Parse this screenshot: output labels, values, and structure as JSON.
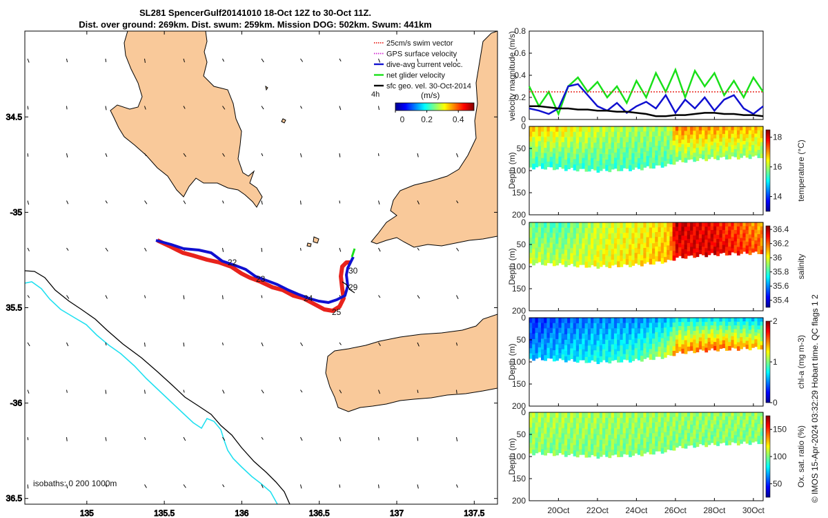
{
  "title": {
    "line1": "SL281 SpencerGulf20141010 18-Oct 12Z to 30-Oct 11Z.",
    "line2": "Dist. over ground: 269km. Dist. swum: 259km. Mission DOG: 502km. Swum: 441km"
  },
  "colors": {
    "land": "#f9c99a",
    "track_red": "#e8231c",
    "track_blue": "#1010d0",
    "cyan": "#20e0f0",
    "green": "#19e019"
  },
  "map": {
    "lon_ticks": [
      "135",
      "135.5",
      "136",
      "136.5",
      "137",
      "137.5"
    ],
    "lon_values": [
      135,
      135.5,
      136,
      136.5,
      137,
      137.5
    ],
    "lon_range": [
      134.6,
      137.65
    ],
    "lat_ticks": [
      "34.5",
      "-35",
      "35.5",
      "-36",
      "36.5"
    ],
    "lat_values": [
      -34.5,
      -35,
      -35.5,
      -36,
      -36.5
    ],
    "lat_range": [
      -36.53,
      -34.05
    ],
    "isobaths_label": "isobaths: 0   200  1000m",
    "day_labels": [
      "22",
      "23",
      "24",
      "25",
      "29",
      "30"
    ],
    "legend": [
      {
        "label": "25cm/s swim vector",
        "color": "#e8231c",
        "style": "dotted"
      },
      {
        "label": "GPS surface velocity",
        "color": "#d020d0",
        "style": "dotted"
      },
      {
        "label": "dive-avg current veloc.",
        "color": "#1010d0",
        "style": "solid"
      },
      {
        "label": "net glider velocity",
        "color": "#19e019",
        "style": "solid"
      },
      {
        "label": "sfc geo. vel. 30-Oct-2014",
        "color": "#000000",
        "style": "solid"
      }
    ],
    "vector_note": "4h",
    "colorbar_unit": "(m/s)",
    "colorbar_ticks": [
      "0",
      "0.2",
      "0.4"
    ],
    "colorbar_values": [
      0,
      0.2,
      0.4
    ],
    "colorbar_range": [
      0,
      0.5
    ]
  },
  "chart_data": [
    {
      "type": "line",
      "title": "velocity magnitude",
      "ylabel": "velocity magnitude (m/s)",
      "ylim": [
        0,
        0.8
      ],
      "yticks": [
        "0",
        "0.2",
        "0.4",
        "0.6",
        "0.8"
      ],
      "ytick_values": [
        0,
        0.2,
        0.4,
        0.6,
        0.8
      ],
      "xlim": [
        18.5,
        30.5
      ],
      "x": [
        18.5,
        19,
        19.5,
        20,
        20.5,
        21,
        21.5,
        22,
        22.5,
        23,
        23.5,
        24,
        24.5,
        25,
        25.5,
        26,
        26.5,
        27,
        27.5,
        28,
        28.5,
        29,
        29.5,
        30,
        30.5
      ],
      "series": [
        {
          "name": "net glider velocity",
          "color": "#19e019",
          "values": [
            0.3,
            0.12,
            0.25,
            0.05,
            0.3,
            0.38,
            0.25,
            0.34,
            0.2,
            0.3,
            0.15,
            0.35,
            0.2,
            0.42,
            0.25,
            0.45,
            0.2,
            0.44,
            0.3,
            0.42,
            0.22,
            0.35,
            0.2,
            0.38,
            0.25
          ]
        },
        {
          "name": "dive-avg current veloc.",
          "color": "#1010d0",
          "values": [
            0.1,
            0.08,
            0.05,
            0.1,
            0.3,
            0.32,
            0.22,
            0.12,
            0.08,
            0.15,
            0.06,
            0.12,
            0.16,
            0.1,
            0.22,
            0.06,
            0.18,
            0.1,
            0.2,
            0.08,
            0.18,
            0.22,
            0.1,
            0.05,
            0.12
          ]
        },
        {
          "name": "sfc geo. vel.",
          "color": "#000000",
          "values": [
            0.12,
            0.12,
            0.11,
            0.1,
            0.1,
            0.09,
            0.09,
            0.08,
            0.08,
            0.07,
            0.07,
            0.06,
            0.05,
            0.03,
            0.03,
            0.04,
            0.04,
            0.05,
            0.06,
            0.06,
            0.05,
            0.05,
            0.04,
            0.04,
            0.03
          ]
        },
        {
          "name": "25cm/s swim vector",
          "color": "#e8231c",
          "values": [
            0.25,
            0.25,
            0.25,
            0.25,
            0.25,
            0.25,
            0.25,
            0.25,
            0.25,
            0.25,
            0.25,
            0.25,
            0.25,
            0.25,
            0.25,
            0.25,
            0.25,
            0.25,
            0.25,
            0.25,
            0.25,
            0.25,
            0.25,
            0.25,
            0.25
          ]
        }
      ]
    },
    {
      "type": "heatmap",
      "ylabel": "Depth (m)",
      "clabel": "temperature (°C)",
      "yticks": [
        "0",
        "50",
        "100",
        "150",
        "200"
      ],
      "ytick_values": [
        0,
        50,
        100,
        150,
        200
      ],
      "cticks": [
        "14",
        "16",
        "18"
      ],
      "ctick_values": [
        14,
        16,
        18
      ],
      "crange": [
        13,
        18.5
      ],
      "x_days": [
        18.5,
        20,
        22,
        24,
        25.7,
        26,
        28,
        30.5
      ],
      "bottom_depth_m": [
        92,
        95,
        100,
        96,
        87,
        80,
        72,
        68
      ],
      "surface_value": [
        16.8,
        16.6,
        16.2,
        16.0,
        16.0,
        17.2,
        17.0,
        16.8
      ],
      "bottom_value": [
        15.2,
        15.3,
        15.4,
        15.4,
        15.5,
        15.6,
        15.8,
        15.8
      ]
    },
    {
      "type": "heatmap",
      "ylabel": "Depth (m)",
      "clabel": "salinity",
      "yticks": [
        "0",
        "50",
        "100",
        "150",
        "200"
      ],
      "ytick_values": [
        0,
        50,
        100,
        150,
        200
      ],
      "cticks": [
        "35.4",
        "35.6",
        "35.8",
        "36",
        "36.2",
        "36.4"
      ],
      "ctick_values": [
        35.4,
        35.6,
        35.8,
        36,
        36.2,
        36.4
      ],
      "crange": [
        35.3,
        36.45
      ],
      "x_days": [
        18.5,
        20,
        22,
        24,
        25.7,
        26,
        28,
        30.5
      ],
      "bottom_depth_m": [
        92,
        95,
        100,
        96,
        87,
        80,
        72,
        68
      ],
      "surface_value": [
        35.85,
        35.8,
        35.95,
        36.0,
        36.05,
        36.38,
        36.3,
        36.1
      ],
      "bottom_value": [
        35.95,
        35.95,
        36.0,
        36.05,
        36.1,
        36.3,
        36.35,
        36.2
      ]
    },
    {
      "type": "heatmap",
      "ylabel": "Depth (m)",
      "clabel": "chl-a (mg m-3)",
      "yticks": [
        "0",
        "50",
        "100",
        "150",
        "200"
      ],
      "ytick_values": [
        0,
        50,
        100,
        150,
        200
      ],
      "cticks": [
        "0",
        "1",
        "2"
      ],
      "ctick_values": [
        0,
        1,
        2
      ],
      "crange": [
        0,
        2
      ],
      "x_days": [
        18.5,
        20,
        22,
        24,
        25.7,
        26,
        28,
        30.5
      ],
      "bottom_depth_m": [
        92,
        95,
        100,
        96,
        87,
        80,
        72,
        68
      ],
      "surface_value": [
        0.3,
        0.4,
        0.5,
        0.5,
        0.6,
        0.7,
        0.7,
        0.6
      ],
      "bottom_value": [
        0.6,
        0.7,
        0.8,
        0.9,
        1.2,
        1.5,
        1.6,
        1.4
      ]
    },
    {
      "type": "heatmap",
      "ylabel": "Depth (m)",
      "clabel": "Ox. sat. ratio (%)",
      "yticks": [
        "0",
        "50",
        "100",
        "150",
        "200"
      ],
      "ytick_values": [
        0,
        50,
        100,
        150,
        200
      ],
      "cticks": [
        "50",
        "100",
        "150"
      ],
      "ctick_values": [
        50,
        100,
        150
      ],
      "crange": [
        25,
        175
      ],
      "x_days": [
        18.5,
        20,
        22,
        24,
        25.7,
        26,
        28,
        30.5
      ],
      "bottom_depth_m": [
        92,
        95,
        100,
        96,
        87,
        80,
        72,
        68
      ],
      "surface_value": [
        108,
        107,
        106,
        105,
        105,
        104,
        104,
        104
      ],
      "bottom_value": [
        100,
        100,
        100,
        100,
        100,
        100,
        100,
        100
      ]
    }
  ],
  "time_axis": {
    "ticks": [
      "20Oct",
      "22Oct",
      "24Oct",
      "26Oct",
      "28Oct",
      "30Oct"
    ],
    "values": [
      20,
      22,
      24,
      26,
      28,
      30
    ]
  },
  "credit": "© IMOS 15-Apr-2024 03:32:29 Hobart time. QC flags 1  2"
}
